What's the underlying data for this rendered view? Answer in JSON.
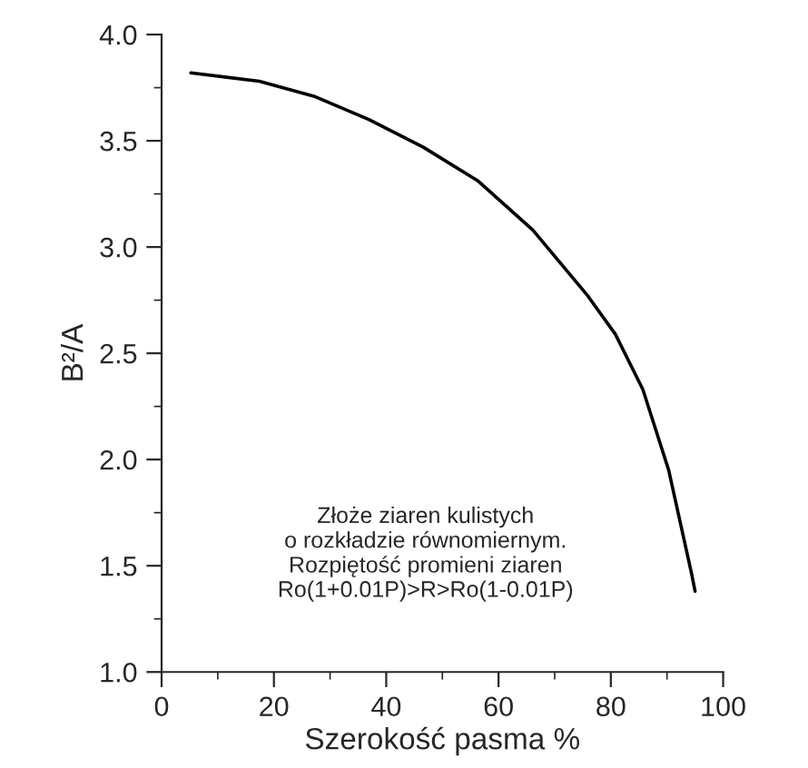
{
  "chart_data": {
    "type": "line",
    "xlabel": "Szerokość pasma %",
    "ylabel": "B²/A",
    "x": [
      5.2,
      17.4,
      27.1,
      36.9,
      46.6,
      56.4,
      66.1,
      75.9,
      80.8,
      85.7,
      90.3,
      94.4,
      95
    ],
    "series": [
      {
        "color": "#000000",
        "values": [
          3.82,
          3.78,
          3.71,
          3.6,
          3.47,
          3.31,
          3.08,
          2.77,
          2.59,
          2.33,
          1.95,
          1.46,
          1.38
        ]
      }
    ],
    "xlim": [
      0,
      100
    ],
    "xticks": [
      0,
      20,
      40,
      60,
      80,
      100
    ],
    "ylim": [
      1.0,
      4.0
    ],
    "yticks": [
      {
        "value": 1.0,
        "label": "1.0"
      },
      {
        "value": 1.5,
        "label": "1.5"
      },
      {
        "value": 2.0,
        "label": "2.0"
      },
      {
        "value": 2.5,
        "label": "2.5"
      },
      {
        "value": 3.0,
        "label": "3.0"
      },
      {
        "value": 3.5,
        "label": "3.5"
      },
      {
        "value": 4.0,
        "label": "4.0"
      }
    ],
    "annotations": [
      "Złoże ziaren kulistych\no rozkładzie równomiernym.\nRozpiętość promieni ziaren\nRo(1+0.01P)>R>Ro(1-0.01P)"
    ],
    "grid": false,
    "legend": false,
    "marker": "none",
    "line_style": "solid"
  }
}
